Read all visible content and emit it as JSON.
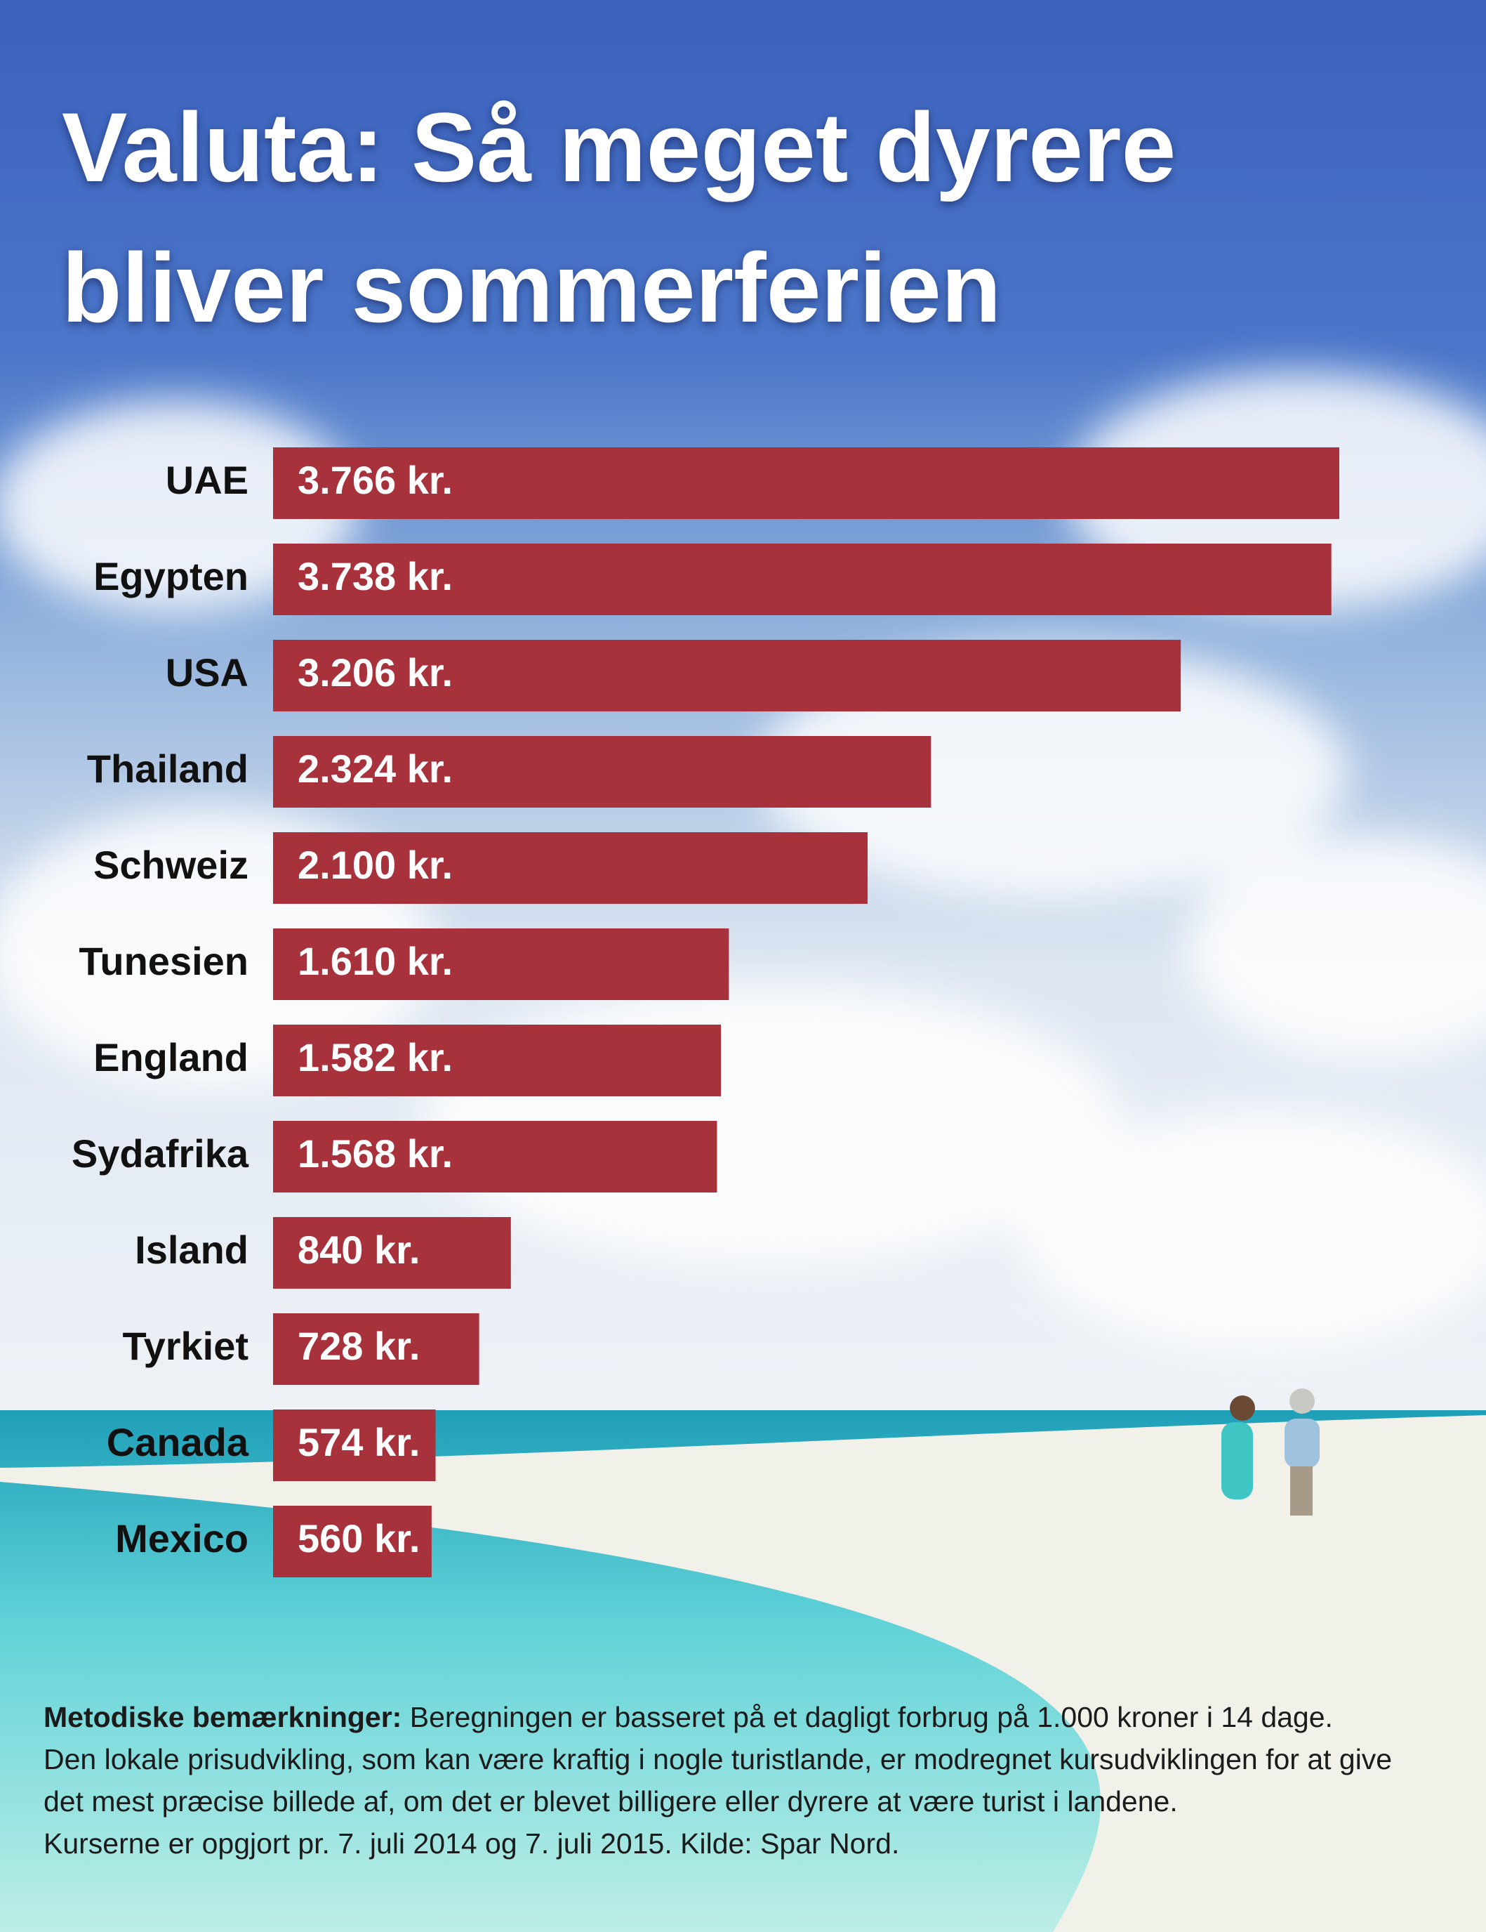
{
  "chart_data": {
    "type": "bar",
    "orientation": "horizontal",
    "title": "Valuta: Så meget dyrere bliver sommerferien",
    "categories": [
      "UAE",
      "Egypten",
      "USA",
      "Thailand",
      "Schweiz",
      "Tunesien",
      "England",
      "Sydafrika",
      "Island",
      "Tyrkiet",
      "Canada",
      "Mexico"
    ],
    "values": [
      3766,
      3738,
      3206,
      2324,
      2100,
      1610,
      1582,
      1568,
      840,
      728,
      574,
      560
    ],
    "value_labels": [
      "3.766 kr.",
      "3.738 kr.",
      "3.206 kr.",
      "2.324 kr.",
      "2.100 kr.",
      "1.610 kr.",
      "1.582 kr.",
      "1.568 kr.",
      "840 kr.",
      "728 kr.",
      "574 kr.",
      "560 kr."
    ],
    "color": "#a8323c",
    "notes": {
      "label": "Metodiske bemærkninger:",
      "lines": [
        " Beregningen er basseret på et dagligt forbrug på 1.000 kroner i 14 dage.",
        "Den lokale prisudvikling, som kan være kraftig i nogle turistlande, er modregnet kursudviklingen for at give",
        "det mest præcise billede af, om det er blevet billigere eller dyrere at være turist i landene.",
        "Kurserne er opgjort pr. 7. juli 2014 og 7. juli 2015. Kilde: Spar Nord."
      ]
    }
  }
}
